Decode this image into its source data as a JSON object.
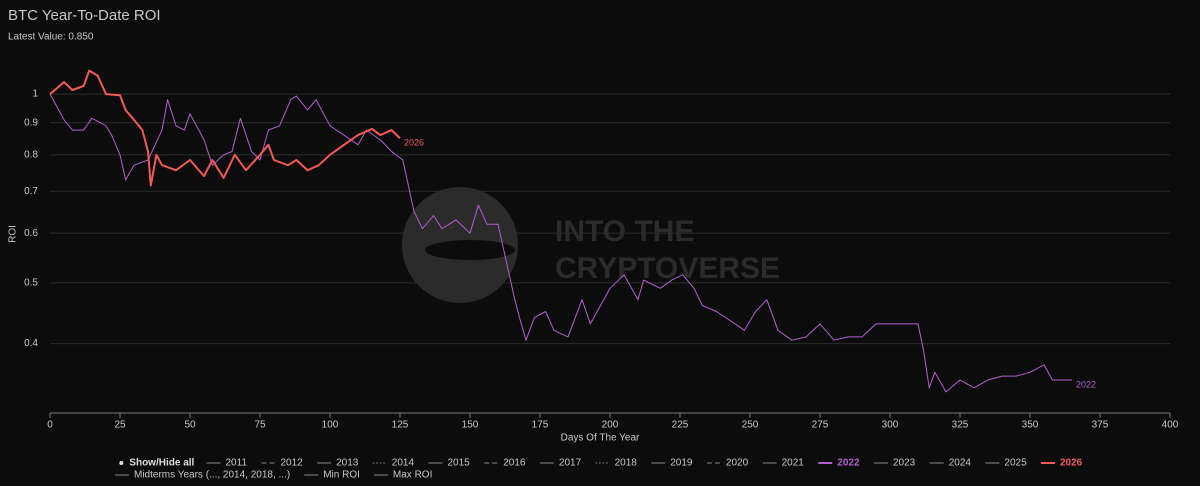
{
  "chart_data": {
    "type": "line",
    "title": "BTC Year-To-Date ROI",
    "subtitle": "Latest Value: 0.850",
    "x_label": "Days Of The Year",
    "y_label": "ROI",
    "watermark": [
      "INTO THE",
      "CRYPTOVERSE"
    ],
    "log_y": true,
    "grid": true,
    "xlim": [
      0,
      400
    ],
    "xticks": [
      0,
      25,
      50,
      75,
      100,
      125,
      150,
      175,
      200,
      225,
      250,
      275,
      300,
      325,
      350,
      375,
      400
    ],
    "ylim": [
      0.31,
      1.125
    ],
    "yticks": [
      0.4,
      0.5,
      0.6,
      0.7,
      0.8,
      0.9,
      1
    ],
    "legend_toggle": "Show/Hide all",
    "series": [
      {
        "name": "2011",
        "color": "#8a8a8a",
        "dash": "solid",
        "visible": false
      },
      {
        "name": "2012",
        "color": "#8a8a8a",
        "dash": "dash",
        "visible": false
      },
      {
        "name": "2013",
        "color": "#8a8a8a",
        "dash": "solid",
        "visible": false
      },
      {
        "name": "2014",
        "color": "#8a8a8a",
        "dash": "dot",
        "visible": false
      },
      {
        "name": "2015",
        "color": "#8a8a8a",
        "dash": "solid",
        "visible": false
      },
      {
        "name": "2016",
        "color": "#8a8a8a",
        "dash": "dash",
        "visible": false
      },
      {
        "name": "2017",
        "color": "#8a8a8a",
        "dash": "solid",
        "visible": false
      },
      {
        "name": "2018",
        "color": "#8a8a8a",
        "dash": "dot",
        "visible": false
      },
      {
        "name": "2019",
        "color": "#8a8a8a",
        "dash": "solid",
        "visible": false
      },
      {
        "name": "2020",
        "color": "#8a8a8a",
        "dash": "dash",
        "visible": false
      },
      {
        "name": "2021",
        "color": "#8a8a8a",
        "dash": "solid",
        "visible": false
      },
      {
        "name": "2022",
        "color": "#b25fcf",
        "dash": "solid",
        "visible": true,
        "width": 1,
        "x": [
          0,
          5,
          8,
          12,
          15,
          20,
          22,
          25,
          27,
          30,
          35,
          40,
          42,
          45,
          48,
          50,
          55,
          58,
          62,
          65,
          68,
          72,
          75,
          78,
          82,
          86,
          88,
          92,
          95,
          100,
          105,
          110,
          113,
          118,
          122,
          126,
          130,
          133,
          137,
          140,
          145,
          150,
          153,
          156,
          160,
          163,
          166,
          168,
          170,
          173,
          177,
          180,
          185,
          190,
          193,
          200,
          205,
          210,
          212,
          218,
          222,
          226,
          230,
          233,
          238,
          243,
          248,
          252,
          256,
          260,
          265,
          270,
          275,
          280,
          285,
          290,
          295,
          300,
          305,
          310,
          312,
          314,
          316,
          320,
          325,
          330,
          335,
          340,
          345,
          350,
          355,
          358,
          362,
          365
        ],
        "values": [
          1.0,
          0.91,
          0.876,
          0.876,
          0.915,
          0.89,
          0.86,
          0.8,
          0.73,
          0.77,
          0.785,
          0.876,
          0.98,
          0.89,
          0.876,
          0.93,
          0.845,
          0.77,
          0.8,
          0.81,
          0.915,
          0.81,
          0.785,
          0.876,
          0.89,
          0.98,
          0.993,
          0.943,
          0.98,
          0.89,
          0.86,
          0.83,
          0.876,
          0.845,
          0.81,
          0.785,
          0.65,
          0.61,
          0.64,
          0.61,
          0.63,
          0.6,
          0.665,
          0.62,
          0.62,
          0.54,
          0.47,
          0.435,
          0.405,
          0.44,
          0.45,
          0.42,
          0.41,
          0.47,
          0.43,
          0.49,
          0.515,
          0.47,
          0.505,
          0.49,
          0.505,
          0.515,
          0.49,
          0.46,
          0.45,
          0.435,
          0.42,
          0.45,
          0.47,
          0.42,
          0.405,
          0.41,
          0.43,
          0.405,
          0.41,
          0.41,
          0.43,
          0.43,
          0.43,
          0.43,
          0.39,
          0.34,
          0.36,
          0.335,
          0.35,
          0.34,
          0.35,
          0.355,
          0.355,
          0.36,
          0.37,
          0.35,
          0.35,
          0.35
        ]
      },
      {
        "name": "2023",
        "color": "#8a8a8a",
        "dash": "solid",
        "visible": false
      },
      {
        "name": "2024",
        "color": "#8a8a8a",
        "dash": "solid",
        "visible": false
      },
      {
        "name": "2025",
        "color": "#8a8a8a",
        "dash": "solid",
        "visible": false
      },
      {
        "name": "2026",
        "color": "#f25a5a",
        "dash": "solid",
        "visible": true,
        "width": 2,
        "x": [
          0,
          5,
          8,
          12,
          14,
          17,
          20,
          25,
          27,
          30,
          33,
          35,
          36,
          38,
          40,
          45,
          50,
          55,
          58,
          62,
          66,
          70,
          75,
          78,
          80,
          85,
          88,
          92,
          96,
          100,
          105,
          110,
          115,
          118,
          122,
          125
        ],
        "values": [
          1.0,
          1.045,
          1.015,
          1.03,
          1.09,
          1.07,
          1.0,
          0.996,
          0.943,
          0.91,
          0.876,
          0.81,
          0.715,
          0.8,
          0.77,
          0.756,
          0.785,
          0.74,
          0.785,
          0.735,
          0.8,
          0.756,
          0.8,
          0.83,
          0.785,
          0.77,
          0.785,
          0.756,
          0.77,
          0.8,
          0.83,
          0.86,
          0.88,
          0.86,
          0.876,
          0.85
        ]
      },
      {
        "name": "Midterms Years (..., 2014, 2018, ...)",
        "color": "#8a8a8a",
        "dash": "solid",
        "visible": false
      },
      {
        "name": "Min ROI",
        "color": "#8a8a8a",
        "dash": "solid",
        "visible": false
      },
      {
        "name": "Max ROI",
        "color": "#8a8a8a",
        "dash": "solid",
        "visible": false
      }
    ]
  }
}
